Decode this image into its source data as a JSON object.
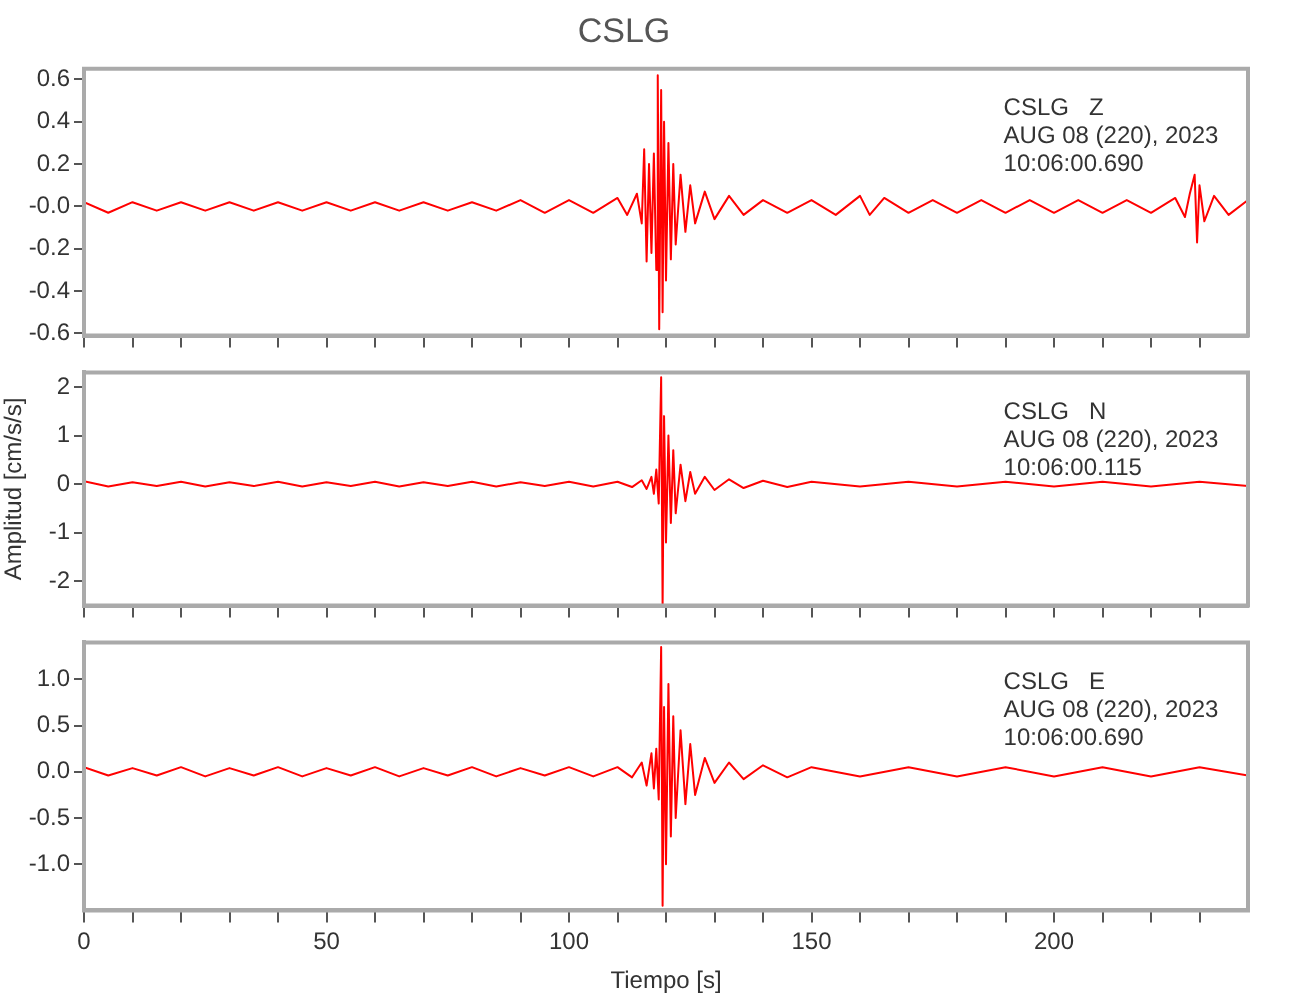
{
  "chart_data": [
    {
      "type": "line",
      "title": "CSLG",
      "annotations": [
        "CSLG   Z",
        "AUG 08 (220), 2023",
        "10:06:00.690"
      ],
      "x": [
        0,
        5,
        10,
        15,
        20,
        25,
        30,
        35,
        40,
        45,
        50,
        55,
        60,
        65,
        70,
        75,
        80,
        85,
        90,
        95,
        100,
        105,
        110,
        112,
        114,
        115,
        115.5,
        116,
        116.5,
        117,
        117.5,
        118,
        118.3,
        118.6,
        119,
        119.3,
        119.6,
        120,
        120.5,
        121,
        121.5,
        122,
        123,
        124,
        125,
        126,
        128,
        130,
        133,
        136,
        140,
        145,
        150,
        155,
        160,
        162,
        165,
        170,
        175,
        180,
        185,
        190,
        195,
        200,
        205,
        210,
        215,
        220,
        225,
        227,
        228,
        229,
        229.5,
        230,
        231,
        233,
        236,
        240
      ],
      "series": [
        {
          "color": "#ff0000",
          "values": [
            0.02,
            -0.03,
            0.02,
            -0.02,
            0.02,
            -0.02,
            0.02,
            -0.02,
            0.02,
            -0.02,
            0.02,
            -0.02,
            0.02,
            -0.02,
            0.02,
            -0.02,
            0.02,
            -0.02,
            0.03,
            -0.03,
            0.03,
            -0.03,
            0.04,
            -0.04,
            0.06,
            -0.08,
            0.27,
            -0.26,
            0.2,
            -0.22,
            0.25,
            -0.3,
            0.62,
            -0.58,
            0.55,
            -0.5,
            0.4,
            -0.35,
            0.3,
            -0.25,
            0.2,
            -0.18,
            0.15,
            -0.12,
            0.1,
            -0.08,
            0.07,
            -0.06,
            0.05,
            -0.04,
            0.03,
            -0.03,
            0.03,
            -0.04,
            0.05,
            -0.04,
            0.04,
            -0.03,
            0.03,
            -0.03,
            0.03,
            -0.03,
            0.03,
            -0.03,
            0.03,
            -0.03,
            0.03,
            -0.03,
            0.04,
            -0.05,
            0.06,
            0.15,
            -0.17,
            0.1,
            -0.07,
            0.05,
            -0.04,
            0.03
          ]
        }
      ],
      "xlim": [
        0,
        240
      ],
      "xticks": [
        0,
        {
          "value": 10,
          "label": null
        },
        {
          "value": 20,
          "label": null
        },
        {
          "value": 30,
          "label": null
        },
        {
          "value": 40,
          "label": null
        },
        50,
        {
          "value": 60,
          "label": null
        },
        {
          "value": 70,
          "label": null
        },
        {
          "value": 80,
          "label": null
        },
        {
          "value": 90,
          "label": null
        },
        100,
        {
          "value": 110,
          "label": null
        },
        {
          "value": 120,
          "label": null
        },
        {
          "value": 130,
          "label": null
        },
        {
          "value": 140,
          "label": null
        },
        150,
        {
          "value": 160,
          "label": null
        },
        {
          "value": 170,
          "label": null
        },
        {
          "value": 180,
          "label": null
        },
        {
          "value": 190,
          "label": null
        },
        200,
        {
          "value": 210,
          "label": null
        },
        {
          "value": 220,
          "label": null
        },
        {
          "value": 230,
          "label": null
        }
      ],
      "ylim": [
        -0.61,
        0.65
      ],
      "yticks": [
        {
          "value": -0.6,
          "label": "-0.6"
        },
        {
          "value": -0.4,
          "label": "-0.4"
        },
        {
          "value": -0.2,
          "label": "-0.2"
        },
        {
          "value": 0,
          "label": "-0.0"
        },
        {
          "value": 0.2,
          "label": "0.2"
        },
        {
          "value": 0.4,
          "label": "0.4"
        },
        {
          "value": 0.6,
          "label": "0.6"
        }
      ],
      "tick_labels": "y"
    },
    {
      "type": "line",
      "ylabel": "Amplitud [cm/s/s]",
      "annotations": [
        "CSLG   N",
        "AUG 08 (220), 2023",
        "10:06:00.115"
      ],
      "x": [
        0,
        5,
        10,
        15,
        20,
        25,
        30,
        35,
        40,
        45,
        50,
        55,
        60,
        65,
        70,
        75,
        80,
        85,
        90,
        95,
        100,
        105,
        110,
        113,
        115,
        116,
        117,
        117.5,
        118,
        118.5,
        119,
        119.3,
        119.6,
        120,
        120.5,
        121,
        121.5,
        122,
        123,
        124,
        125,
        126,
        128,
        130,
        133,
        136,
        140,
        145,
        150,
        160,
        170,
        180,
        190,
        200,
        210,
        220,
        230,
        240
      ],
      "series": [
        {
          "color": "#ff0000",
          "values": [
            0.06,
            -0.05,
            0.04,
            -0.04,
            0.05,
            -0.05,
            0.04,
            -0.04,
            0.05,
            -0.05,
            0.04,
            -0.04,
            0.05,
            -0.05,
            0.04,
            -0.04,
            0.05,
            -0.05,
            0.04,
            -0.04,
            0.05,
            -0.05,
            0.05,
            -0.06,
            0.08,
            -0.1,
            0.15,
            -0.2,
            0.3,
            -0.4,
            2.2,
            -2.5,
            1.4,
            -1.2,
            1.0,
            -0.8,
            0.7,
            -0.6,
            0.4,
            -0.35,
            0.25,
            -0.2,
            0.15,
            -0.12,
            0.1,
            -0.08,
            0.07,
            -0.06,
            0.05,
            -0.05,
            0.05,
            -0.05,
            0.05,
            -0.05,
            0.05,
            -0.05,
            0.05,
            -0.04
          ]
        }
      ],
      "xlim": [
        0,
        240
      ],
      "xticks": [
        0,
        {
          "value": 10,
          "label": null
        },
        {
          "value": 20,
          "label": null
        },
        {
          "value": 30,
          "label": null
        },
        {
          "value": 40,
          "label": null
        },
        50,
        {
          "value": 60,
          "label": null
        },
        {
          "value": 70,
          "label": null
        },
        {
          "value": 80,
          "label": null
        },
        {
          "value": 90,
          "label": null
        },
        100,
        {
          "value": 110,
          "label": null
        },
        {
          "value": 120,
          "label": null
        },
        {
          "value": 130,
          "label": null
        },
        {
          "value": 140,
          "label": null
        },
        150,
        {
          "value": 160,
          "label": null
        },
        {
          "value": 170,
          "label": null
        },
        {
          "value": 180,
          "label": null
        },
        {
          "value": 190,
          "label": null
        },
        200,
        {
          "value": 210,
          "label": null
        },
        {
          "value": 220,
          "label": null
        },
        {
          "value": 230,
          "label": null
        }
      ],
      "ylim": [
        -2.5,
        2.3
      ],
      "yticks": [
        -2,
        -1,
        0,
        1,
        2
      ],
      "tick_labels": "y"
    },
    {
      "type": "line",
      "xlabel": "Tiempo [s]",
      "annotations": [
        "CSLG   E",
        "AUG 08 (220), 2023",
        "10:06:00.690"
      ],
      "x": [
        0,
        5,
        10,
        15,
        20,
        25,
        30,
        35,
        40,
        45,
        50,
        55,
        60,
        65,
        70,
        75,
        80,
        85,
        90,
        95,
        100,
        105,
        110,
        113,
        115,
        116,
        117,
        117.5,
        118,
        118.5,
        119,
        119.3,
        119.6,
        120,
        120.5,
        121,
        121.5,
        122,
        123,
        124,
        125,
        126,
        128,
        130,
        133,
        136,
        140,
        145,
        150,
        160,
        170,
        180,
        190,
        200,
        210,
        220,
        230,
        240
      ],
      "series": [
        {
          "color": "#ff0000",
          "values": [
            0.05,
            -0.04,
            0.04,
            -0.04,
            0.05,
            -0.05,
            0.04,
            -0.04,
            0.05,
            -0.05,
            0.04,
            -0.04,
            0.05,
            -0.05,
            0.04,
            -0.04,
            0.05,
            -0.05,
            0.04,
            -0.04,
            0.05,
            -0.05,
            0.05,
            -0.06,
            0.1,
            -0.15,
            0.2,
            -0.18,
            0.25,
            -0.3,
            1.35,
            -1.45,
            0.7,
            -1.0,
            0.95,
            -0.7,
            0.6,
            -0.5,
            0.45,
            -0.35,
            0.3,
            -0.25,
            0.15,
            -0.12,
            0.1,
            -0.08,
            0.07,
            -0.06,
            0.05,
            -0.05,
            0.05,
            -0.05,
            0.05,
            -0.05,
            0.05,
            -0.05,
            0.05,
            -0.04
          ]
        }
      ],
      "xlim": [
        0,
        240
      ],
      "xticks": [
        0,
        {
          "value": 10,
          "label": null
        },
        {
          "value": 20,
          "label": null
        },
        {
          "value": 30,
          "label": null
        },
        {
          "value": 40,
          "label": null
        },
        50,
        {
          "value": 60,
          "label": null
        },
        {
          "value": 70,
          "label": null
        },
        {
          "value": 80,
          "label": null
        },
        {
          "value": 90,
          "label": null
        },
        100,
        {
          "value": 110,
          "label": null
        },
        {
          "value": 120,
          "label": null
        },
        {
          "value": 130,
          "label": null
        },
        {
          "value": 140,
          "label": null
        },
        150,
        {
          "value": 160,
          "label": null
        },
        {
          "value": 170,
          "label": null
        },
        {
          "value": 180,
          "label": null
        },
        {
          "value": 190,
          "label": null
        },
        200,
        {
          "value": 210,
          "label": null
        },
        {
          "value": 220,
          "label": null
        },
        {
          "value": 230,
          "label": null
        }
      ],
      "ylim": [
        -1.5,
        1.4
      ],
      "yticks": [
        {
          "value": -1,
          "label": "-1.0"
        },
        {
          "value": -0.5,
          "label": "-0.5"
        },
        {
          "value": 0,
          "label": "0.0"
        },
        {
          "value": 0.5,
          "label": "0.5"
        },
        {
          "value": 1,
          "label": "1.0"
        }
      ]
    }
  ]
}
